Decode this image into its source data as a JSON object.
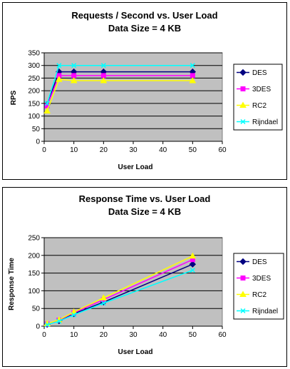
{
  "chart_data": [
    {
      "type": "line",
      "title": "Requests / Second  vs.  User Load",
      "subtitle": "Data Size = 4 KB",
      "xlabel": "User Load",
      "ylabel": "RPS",
      "xlim": [
        0,
        60
      ],
      "ylim": [
        0,
        350
      ],
      "xticks": [
        0,
        10,
        20,
        30,
        40,
        50,
        60
      ],
      "yticks": [
        0,
        50,
        100,
        150,
        200,
        250,
        300,
        350
      ],
      "grid": true,
      "legend": "right",
      "series": [
        {
          "name": "DES",
          "color": "#000080",
          "marker": "diamond",
          "x": [
            1,
            5,
            10,
            20,
            50
          ],
          "y": [
            145,
            275,
            275,
            275,
            275
          ]
        },
        {
          "name": "3DES",
          "color": "#ff00ff",
          "marker": "square",
          "x": [
            1,
            5,
            10,
            20,
            50
          ],
          "y": [
            140,
            260,
            260,
            260,
            260
          ]
        },
        {
          "name": "RC2",
          "color": "#ffff00",
          "marker": "triangle",
          "x": [
            1,
            5,
            10,
            20,
            50
          ],
          "y": [
            120,
            245,
            240,
            240,
            240
          ]
        },
        {
          "name": "Rijndael",
          "color": "#00ffff",
          "marker": "x",
          "x": [
            1,
            5,
            10,
            20,
            50
          ],
          "y": [
            150,
            300,
            300,
            300,
            300
          ]
        }
      ]
    },
    {
      "type": "line",
      "title": "Response Time  vs.  User Load",
      "subtitle": "Data Size = 4 KB",
      "xlabel": "User Load",
      "ylabel": "Response Time",
      "xlim": [
        0,
        60
      ],
      "ylim": [
        0,
        250
      ],
      "xticks": [
        0,
        10,
        20,
        30,
        40,
        50,
        60
      ],
      "yticks": [
        0,
        50,
        100,
        150,
        200,
        250
      ],
      "grid": true,
      "legend": "right",
      "series": [
        {
          "name": "DES",
          "color": "#000080",
          "marker": "diamond",
          "x": [
            1,
            5,
            10,
            20,
            50
          ],
          "y": [
            5,
            15,
            35,
            68,
            175
          ]
        },
        {
          "name": "3DES",
          "color": "#ff00ff",
          "marker": "square",
          "x": [
            1,
            5,
            10,
            20,
            50
          ],
          "y": [
            6,
            17,
            38,
            75,
            188
          ]
        },
        {
          "name": "RC2",
          "color": "#ffff00",
          "marker": "triangle",
          "x": [
            1,
            5,
            10,
            20,
            50
          ],
          "y": [
            7,
            18,
            40,
            80,
            198
          ]
        },
        {
          "name": "Rijndael",
          "color": "#00ffff",
          "marker": "x",
          "x": [
            1,
            5,
            10,
            20,
            50
          ],
          "y": [
            4,
            14,
            32,
            65,
            158
          ]
        }
      ]
    }
  ]
}
